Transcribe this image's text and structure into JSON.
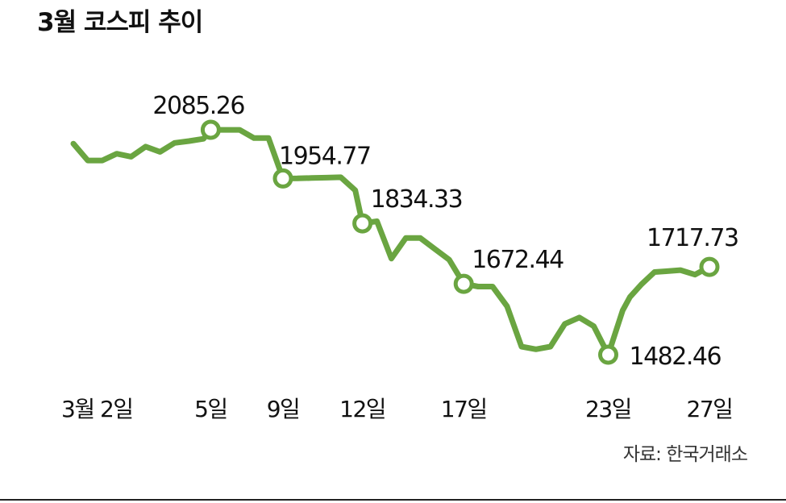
{
  "chart_data": {
    "type": "line",
    "title": "3월 코스피 추이",
    "source": "자료: 한국거래소",
    "line_color": "#6aa541",
    "ylim": [
      1420,
      2160
    ],
    "xlim": [
      0,
      39
    ],
    "series": [
      {
        "values": [
          2048,
          2003,
          2003,
          2021,
          2013,
          2040,
          2026,
          2050,
          2055,
          2061,
          2085.26,
          2085,
          2085,
          2063,
          2063,
          1954.77,
          1955,
          1956,
          1957,
          1958,
          1923,
          1834.33,
          1840,
          1740,
          1795,
          1795,
          1766,
          1737,
          1672.44,
          1665,
          1665,
          1612,
          1504,
          1497,
          1504,
          1565,
          1582,
          1559,
          1482.46,
          1601,
          1637,
          1671,
          1704,
          1706,
          1709,
          1697,
          1717.73
        ]
      }
    ],
    "x_positions": [
      0,
      1,
      2,
      3,
      4,
      5,
      6,
      7,
      8,
      9,
      9.5,
      10.5,
      11.5,
      12.5,
      13.5,
      14.5,
      15.5,
      16.5,
      17.5,
      18.5,
      19.5,
      20,
      21,
      22,
      23,
      24,
      25,
      26,
      27,
      28,
      29,
      30,
      31,
      32,
      33,
      34,
      35,
      36,
      37,
      38,
      38.5,
      39.3,
      40.2,
      41,
      42,
      43,
      44
    ]
  },
  "annotations": [
    {
      "label": "2085.26",
      "index": 10
    },
    {
      "label": "1954.77",
      "index": 15
    },
    {
      "label": "1834.33",
      "index": 21
    },
    {
      "label": "1672.44",
      "index": 28
    },
    {
      "label": "1482.46",
      "index": 38
    },
    {
      "label": "1717.73",
      "index": 46
    }
  ],
  "x_ticks": [
    {
      "label": "3월 2일",
      "index": 0
    },
    {
      "label": "5일",
      "index": 10
    },
    {
      "label": "9일",
      "index": 15
    },
    {
      "label": "12일",
      "index": 21
    },
    {
      "label": "17일",
      "index": 28
    },
    {
      "label": "23일",
      "index": 38
    },
    {
      "label": "27일",
      "index": 46
    }
  ]
}
